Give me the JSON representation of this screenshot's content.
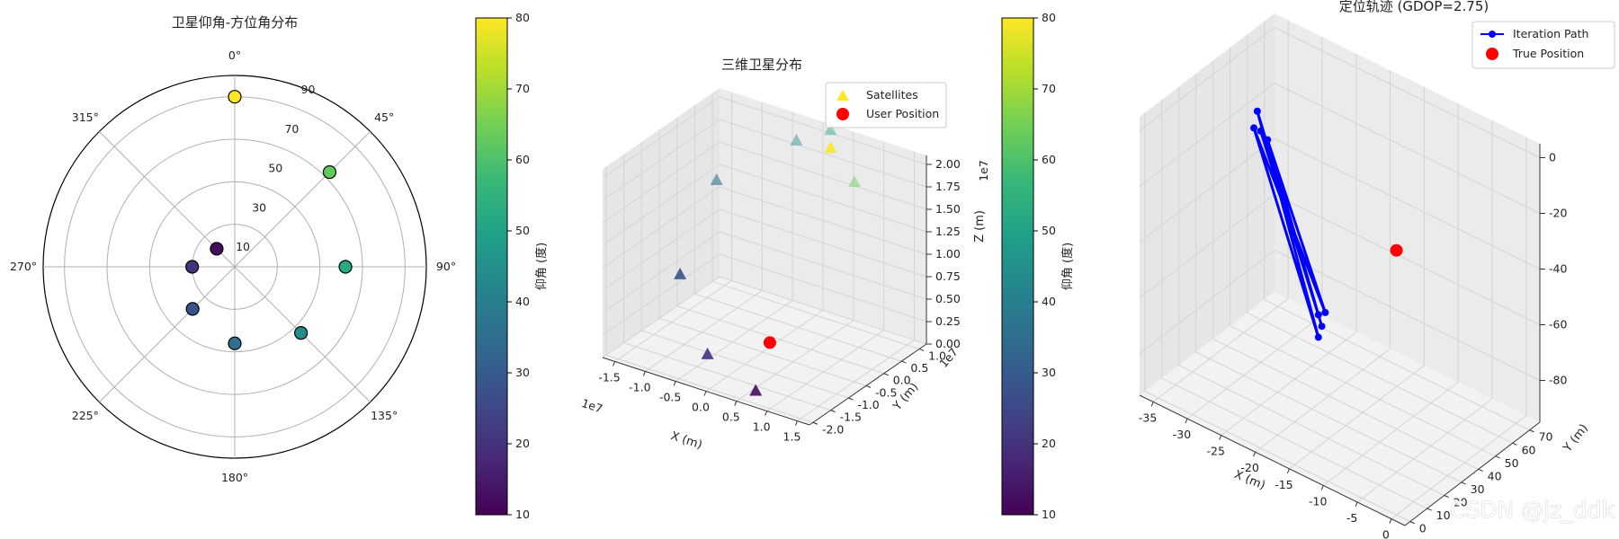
{
  "chart_data": [
    {
      "type": "polar-scatter",
      "title": "卫星仰角-方位角分布",
      "radial_ticks": [
        "10",
        "30",
        "50",
        "70",
        "90"
      ],
      "angle_ticks": [
        "0°",
        "45°",
        "90°",
        "135°",
        "180°",
        "225°",
        "270°",
        "315°"
      ],
      "grid": true,
      "colorbar": {
        "label": "仰角 (度)",
        "ticks": [
          "10",
          "20",
          "30",
          "40",
          "50",
          "60",
          "70",
          "80"
        ],
        "range": [
          10,
          80
        ]
      },
      "satellites": [
        {
          "azimuth": 0,
          "elevation": 80
        },
        {
          "azimuth": 45,
          "elevation": 63
        },
        {
          "azimuth": 90,
          "elevation": 52
        },
        {
          "azimuth": 135,
          "elevation": 44
        },
        {
          "azimuth": 180,
          "elevation": 36
        },
        {
          "azimuth": 225,
          "elevation": 28
        },
        {
          "azimuth": 270,
          "elevation": 20
        },
        {
          "azimuth": 315,
          "elevation": 12
        }
      ]
    },
    {
      "type": "scatter3d",
      "title": "三维卫星分布",
      "xlabel": "X (m)",
      "ylabel": "Y (m)",
      "zlabel": "Z (m)",
      "x_ticks": [
        "-1.5",
        "-1.0",
        "-0.5",
        "0.0",
        "0.5",
        "1.0",
        "1.5"
      ],
      "y_ticks": [
        "-2.0",
        "-1.5",
        "-1.0",
        "-0.5",
        "0.0",
        "0.5",
        "1.0"
      ],
      "z_ticks": [
        "0.00",
        "0.25",
        "0.50",
        "0.75",
        "1.00",
        "1.25",
        "1.50",
        "1.75",
        "2.00"
      ],
      "x_offset": "1e7",
      "y_offset": "1e7",
      "z_offset": "1e7",
      "xlim": [
        -1.7,
        1.7
      ],
      "ylim": [
        -2.1,
        1.2
      ],
      "zlim": [
        0,
        2.1
      ],
      "legend": [
        "Satellites",
        "User Position"
      ],
      "colorbar": {
        "label": "仰角 (度)",
        "ticks": [
          "10",
          "20",
          "30",
          "40",
          "50",
          "60",
          "70",
          "80"
        ],
        "range": [
          10,
          80
        ]
      },
      "satellites": [
        {
          "x": 0.3,
          "y": 0.9,
          "z": 1.95,
          "elevation": 80
        },
        {
          "x": 0.75,
          "y": 0.8,
          "z": 1.7,
          "elevation": 63
        },
        {
          "x": 0.15,
          "y": 1.15,
          "z": 2.05,
          "elevation": 52
        },
        {
          "x": -0.35,
          "y": 1.05,
          "z": 1.85,
          "elevation": 44
        },
        {
          "x": -1.4,
          "y": 0.6,
          "z": 1.3,
          "elevation": 36
        },
        {
          "x": -1.3,
          "y": -0.6,
          "z": 0.6,
          "elevation": 28
        },
        {
          "x": -0.5,
          "y": -1.2,
          "z": 0.05,
          "elevation": 20
        },
        {
          "x": 0.7,
          "y": -1.9,
          "z": 0.1,
          "elevation": 12
        }
      ],
      "user": {
        "x": 0.0,
        "y": -0.3,
        "z": 0.05
      }
    },
    {
      "type": "line3d",
      "title": "定位轨迹 (GDOP=2.75)",
      "xlabel": "X (m)",
      "ylabel": "Y (m)",
      "zlabel": "Z (m)",
      "x_ticks": [
        "-35",
        "-30",
        "-25",
        "-20",
        "-15",
        "-10",
        "-5",
        "0"
      ],
      "y_ticks": [
        "0",
        "10",
        "20",
        "30",
        "40",
        "50",
        "60",
        "70"
      ],
      "z_ticks": [
        "0",
        "-20",
        "-40",
        "-60",
        "-80"
      ],
      "xlim": [
        -37,
        2
      ],
      "ylim": [
        -3,
        76
      ],
      "zlim": [
        -95,
        5
      ],
      "legend": [
        "Iteration Path",
        "True Position"
      ],
      "iteration_path": [
        {
          "x": -31,
          "y": 44,
          "z": -15
        },
        {
          "x": -19,
          "y": 30,
          "z": -60
        },
        {
          "x": -31,
          "y": 48,
          "z": -20
        },
        {
          "x": -18,
          "y": 30,
          "z": -58
        },
        {
          "x": -31,
          "y": 40,
          "z": -12
        },
        {
          "x": -18,
          "y": 26,
          "z": -65
        },
        {
          "x": -32,
          "y": 46,
          "z": -10
        },
        {
          "x": -18,
          "y": 28,
          "z": -62
        }
      ],
      "true_position": {
        "x": 0,
        "y": 0,
        "z": 0
      }
    }
  ],
  "watermark": "CSDN @jz_ddk"
}
